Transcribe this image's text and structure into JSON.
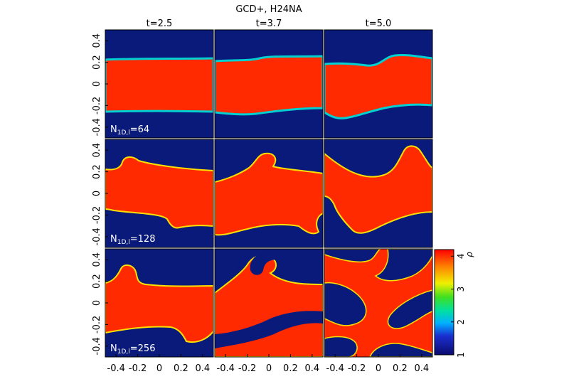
{
  "title": "GCD+, H24NA",
  "columns": [
    "t=2.5",
    "t=3.7",
    "t=5.0"
  ],
  "rows": [
    {
      "label_main": "N",
      "label_sub": "1D,l",
      "label_value": "=64"
    },
    {
      "label_main": "N",
      "label_sub": "1D,l",
      "label_value": "=128"
    },
    {
      "label_main": "N",
      "label_sub": "1D,l",
      "label_value": "=256"
    }
  ],
  "colors": {
    "background_low": "#0a1a7a",
    "fluid_high": "#ff2a00",
    "edge": "#ffe000"
  },
  "chart_data": {
    "type": "heatmap",
    "title": "GCD+, H24NA",
    "x_ticks": [
      "-0.4",
      "-0.2",
      "0",
      "0.2",
      "0.4"
    ],
    "y_ticks": [
      "-0.4",
      "-0.2",
      "0",
      "0.2",
      "0.4"
    ],
    "xlim": [
      -0.5,
      0.5
    ],
    "ylim": [
      -0.5,
      0.5
    ],
    "colorbar": {
      "label": "ρ",
      "range": [
        1,
        4.2
      ],
      "ticks": [
        "1",
        "2",
        "3",
        "4"
      ]
    }
  }
}
